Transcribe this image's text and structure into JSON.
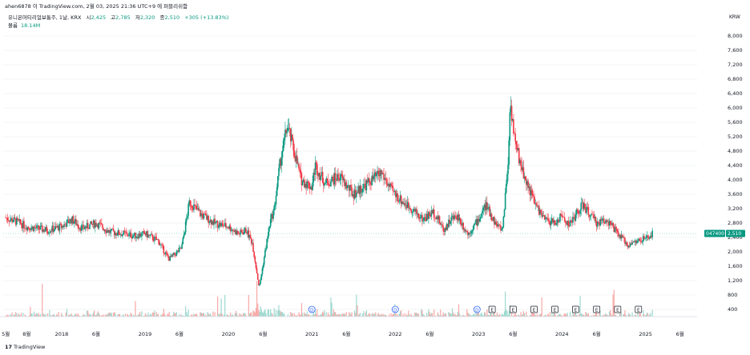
{
  "header": {
    "published_line": "ahen6878 이 TradingView.com, 2월 03, 2025 21:36 UTC+9 에 퍼블리쉬함",
    "symbol_line": "유니온머티리얼보통주, 1날, KRX",
    "open_label": "시",
    "open_value": "2,425",
    "high_label": "고",
    "high_value": "2,785",
    "low_label": "저",
    "low_value": "2,320",
    "close_label": "종",
    "close_value": "2,510",
    "change": "+305 (+13.83%)",
    "volume_label": "볼륨",
    "volume_value": "18.14M"
  },
  "currency": "KRW",
  "price_tag": {
    "ticker": "047400",
    "value": "2,510"
  },
  "footer": {
    "logo": "17",
    "brand": "TradingView"
  },
  "colors": {
    "up": "#089981",
    "down": "#f23645",
    "ticker_bg": "#089981",
    "price_line": "#7fd4c5",
    "event_circle": "#2962ff"
  },
  "chart_data": {
    "type": "candlestick",
    "y_axis": {
      "min": 400,
      "max": 8000,
      "ticks": [
        400,
        800,
        1200,
        1600,
        2000,
        2400,
        2800,
        3200,
        3600,
        4000,
        4400,
        4800,
        5200,
        5600,
        6000,
        6400,
        6800,
        7200,
        7600,
        8000
      ],
      "tick_labels": [
        "400",
        "800",
        "1,200",
        "1,600",
        "2,000",
        "2,400",
        "2,800",
        "3,200",
        "3,600",
        "4,000",
        "4,400",
        "4,800",
        "5,200",
        "5,600",
        "6,000",
        "6,400",
        "6,800",
        "7,200",
        "7,600",
        "8,000"
      ]
    },
    "x_axis": {
      "labels": [
        "5월",
        "8월",
        "2018",
        "6월",
        "2019",
        "6월",
        "2020",
        "6월",
        "2021",
        "6월",
        "2022",
        "6월",
        "2023",
        "6월",
        "2024",
        "6월",
        "2025",
        "6월"
      ],
      "dates": [
        "2017-05-01",
        "2017-08-01",
        "2018-01-01",
        "2018-06-01",
        "2019-01-01",
        "2019-06-01",
        "2020-01-01",
        "2020-06-01",
        "2021-01-01",
        "2021-06-01",
        "2022-01-01",
        "2022-06-01",
        "2023-01-01",
        "2023-06-01",
        "2024-01-01",
        "2024-06-01",
        "2025-01-01",
        "2025-06-01"
      ]
    },
    "price_series": {
      "dates": [
        "2017-05-01",
        "2017-06-15",
        "2017-08-01",
        "2017-09-15",
        "2017-11-01",
        "2018-01-01",
        "2018-02-15",
        "2018-04-01",
        "2018-06-01",
        "2018-08-01",
        "2018-10-01",
        "2018-11-15",
        "2019-01-01",
        "2019-03-01",
        "2019-04-15",
        "2019-05-15",
        "2019-06-10",
        "2019-07-15",
        "2019-09-01",
        "2019-11-01",
        "2020-01-01",
        "2020-02-15",
        "2020-03-20",
        "2020-04-15",
        "2020-05-15",
        "2020-06-10",
        "2020-07-01",
        "2020-07-20",
        "2020-08-15",
        "2020-09-15",
        "2020-10-15",
        "2020-11-15",
        "2021-01-01",
        "2021-01-15",
        "2021-03-01",
        "2021-05-01",
        "2021-07-01",
        "2021-09-01",
        "2021-11-01",
        "2021-12-15",
        "2022-01-01",
        "2022-02-01",
        "2022-03-15",
        "2022-05-01",
        "2022-06-15",
        "2022-07-01",
        "2022-08-01",
        "2022-09-01",
        "2022-10-01",
        "2022-11-15",
        "2023-01-01",
        "2023-02-01",
        "2023-03-15",
        "2023-04-15",
        "2023-05-10",
        "2023-05-20",
        "2023-06-10",
        "2023-07-15",
        "2023-09-01",
        "2023-10-15",
        "2023-12-01",
        "2024-01-01",
        "2024-02-01",
        "2024-04-01",
        "2024-06-01",
        "2024-07-15",
        "2024-09-01",
        "2024-10-15",
        "2024-12-01",
        "2025-01-15",
        "2025-02-03"
      ],
      "close": [
        2950,
        2850,
        2700,
        2650,
        2600,
        2700,
        2900,
        2650,
        2800,
        2550,
        2500,
        2450,
        2500,
        2300,
        1800,
        1950,
        2100,
        3400,
        3050,
        2800,
        2700,
        2500,
        2600,
        2250,
        1000,
        2000,
        2800,
        3200,
        4500,
        5500,
        4800,
        4000,
        3800,
        4400,
        3900,
        4100,
        3600,
        3900,
        4200,
        3700,
        3600,
        3400,
        3200,
        2900,
        3100,
        3000,
        2600,
        2900,
        3000,
        2500,
        2900,
        3300,
        2800,
        2600,
        4500,
        6200,
        5000,
        4200,
        3400,
        2900,
        2800,
        3000,
        2750,
        3300,
        2800,
        2900,
        2500,
        2200,
        2300,
        2400,
        2510
      ],
      "last_close": 2510
    },
    "volume": {
      "max_visible_millions": 18.14
    },
    "events": [
      "D",
      "D",
      "D",
      "E",
      "E",
      "E",
      "E",
      "E",
      "E",
      "E",
      "E"
    ]
  }
}
